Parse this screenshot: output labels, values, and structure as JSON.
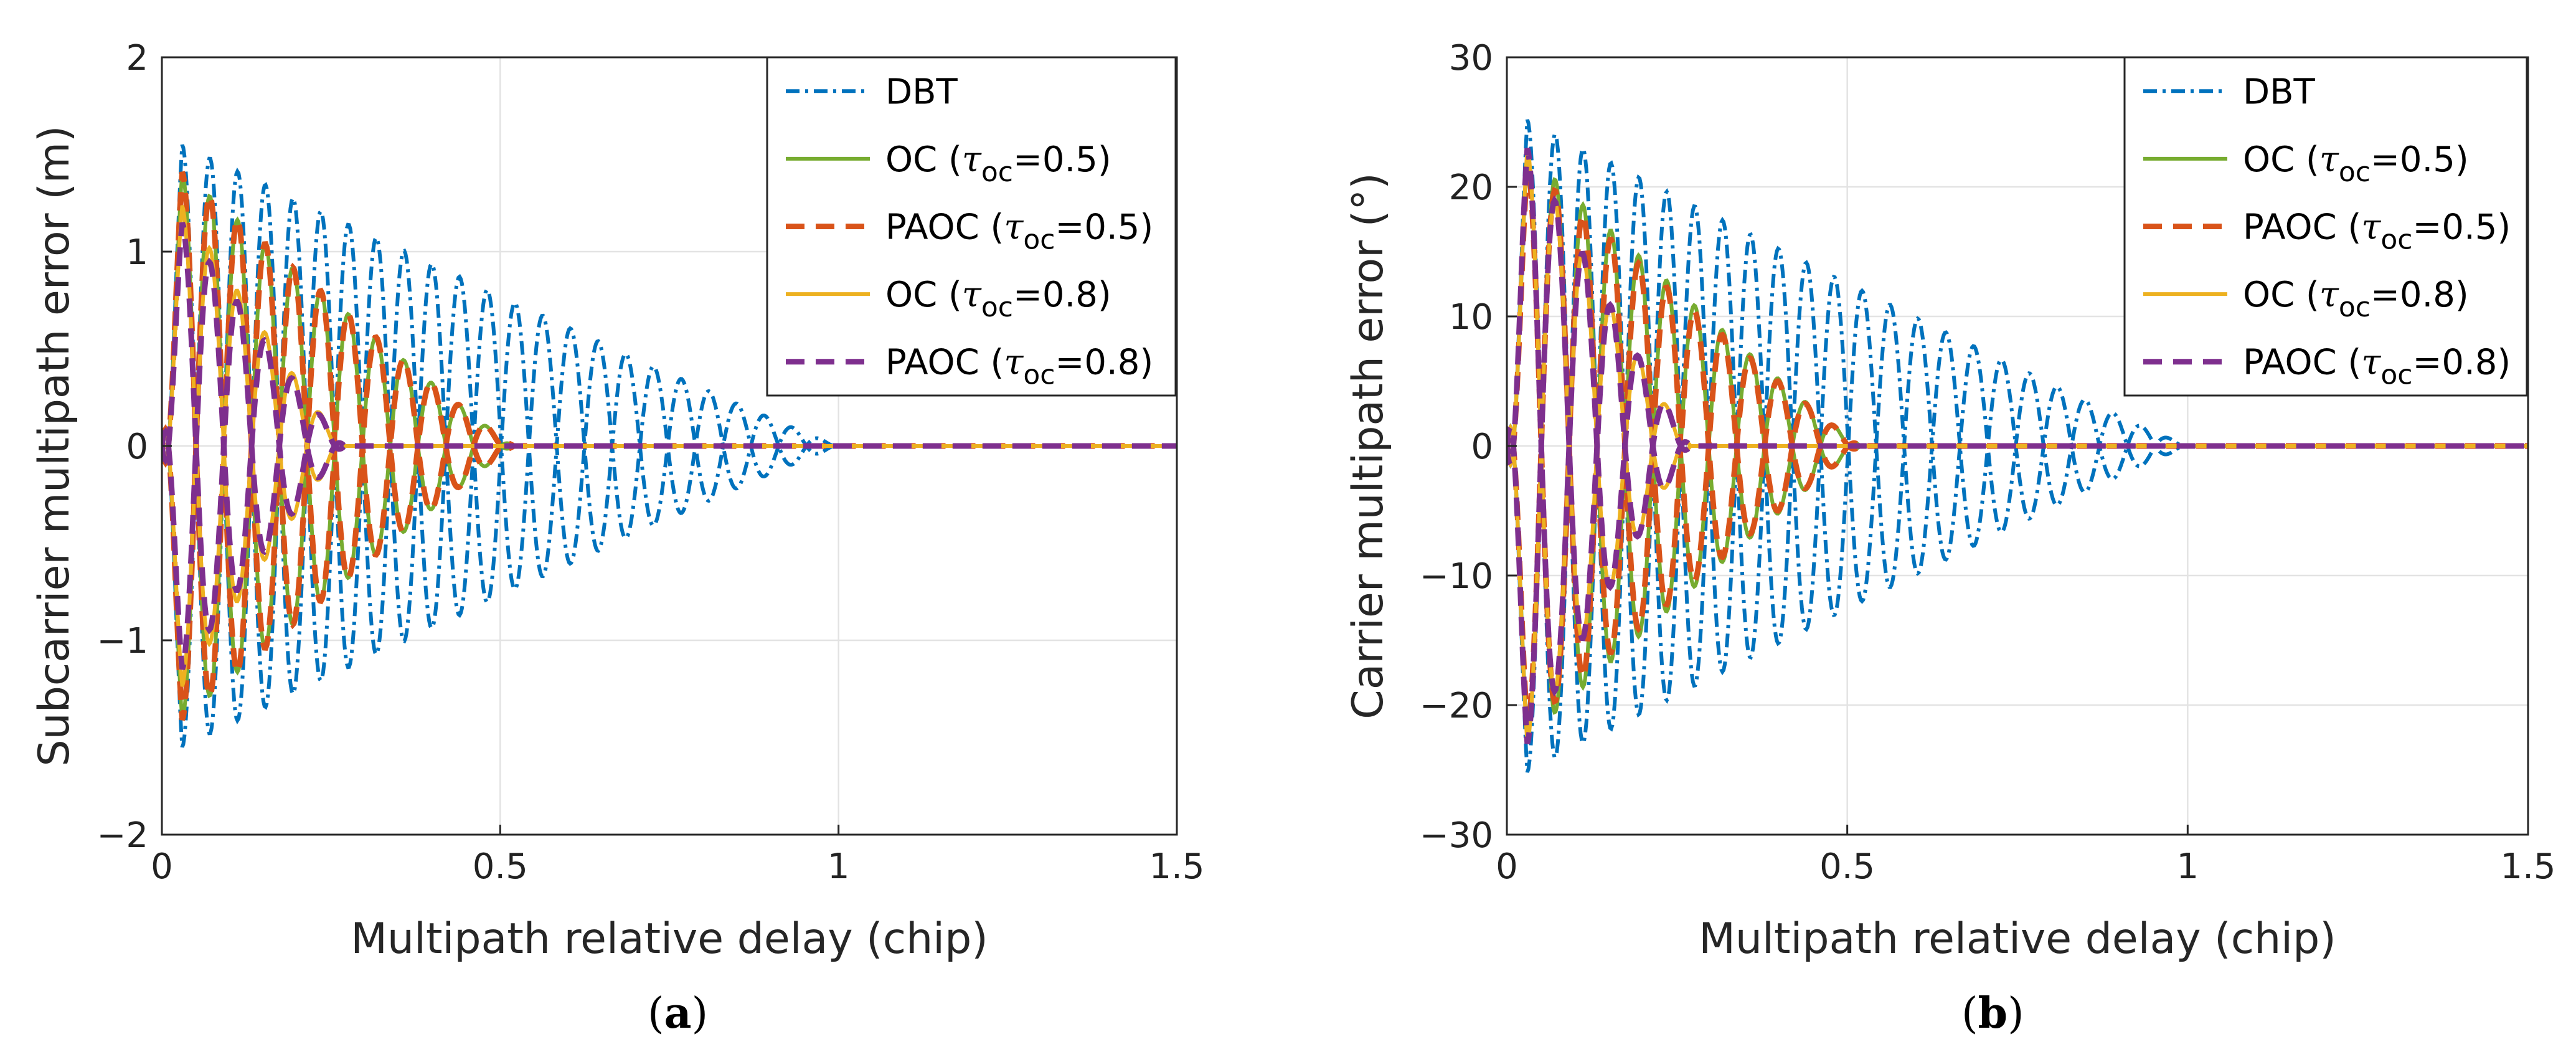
{
  "chart_data": [
    {
      "type": "line",
      "panel": "(a)",
      "panel_prefix": "(",
      "panel_letter": "a",
      "panel_suffix": ")",
      "xlabel": "Multipath relative delay (chip)",
      "ylabel": "Subcarrier multipath error (m)",
      "xlim": [
        0,
        1.5
      ],
      "ylim": [
        -2,
        2
      ],
      "xticks": [
        0,
        0.5,
        1,
        1.5
      ],
      "yticks": [
        -2,
        -1,
        0,
        1,
        2
      ],
      "xtick_labels": [
        "0",
        "0.5",
        "1",
        "1.5"
      ],
      "ytick_labels": [
        "−2",
        "−1",
        "0",
        "1",
        "2"
      ],
      "grid": true,
      "legend_position": "top-right",
      "envelope": "upper and lower curves are mirror images (in-phase / anti-phase multipath)",
      "series": [
        {
          "name": "DBT",
          "label_main": "DBT",
          "label_sub": "",
          "label_tail": "",
          "style": "dash-dot",
          "color": "#0072BD",
          "peak": 1.6,
          "cycle": 0.082,
          "zero_at": 1.0
        },
        {
          "name": "OC (τoc=0.5)",
          "label_main": "OC (",
          "label_sub": "oc",
          "label_tail": "=0.5)",
          "style": "solid",
          "color": "#77AC30",
          "peak": 1.5,
          "cycle": 0.082,
          "zero_at": 0.52
        },
        {
          "name": "PAOC (τoc=0.5)",
          "label_main": "PAOC (",
          "label_sub": "oc",
          "label_tail": "=0.5)",
          "style": "dashed",
          "color": "#D95319",
          "peak": 1.5,
          "cycle": 0.082,
          "zero_at": 0.52
        },
        {
          "name": "OC (τoc=0.8)",
          "label_main": "OC (",
          "label_sub": "oc",
          "label_tail": "=0.8)",
          "style": "solid",
          "color": "#EDB120",
          "peak": 1.4,
          "cycle": 0.082,
          "zero_at": 0.27
        },
        {
          "name": "PAOC (τoc=0.8)",
          "label_main": "PAOC (",
          "label_sub": "oc",
          "label_tail": "=0.8)",
          "style": "dashed",
          "color": "#7E2F8E",
          "peak": 1.3,
          "cycle": 0.082,
          "zero_at": 0.27
        }
      ]
    },
    {
      "type": "line",
      "panel": "(b)",
      "panel_prefix": "(",
      "panel_letter": "b",
      "panel_suffix": ")",
      "xlabel": "Multipath relative delay (chip)",
      "ylabel": "Carrier multipath error (°)",
      "xlim": [
        0,
        1.5
      ],
      "ylim": [
        -30,
        30
      ],
      "xticks": [
        0,
        0.5,
        1,
        1.5
      ],
      "yticks": [
        -30,
        -20,
        -10,
        0,
        10,
        20,
        30
      ],
      "xtick_labels": [
        "0",
        "0.5",
        "1",
        "1.5"
      ],
      "ytick_labels": [
        "−30",
        "−20",
        "−10",
        "0",
        "10",
        "20",
        "30"
      ],
      "grid": true,
      "legend_position": "top-right",
      "envelope": "upper and lower curves are mirror images (in-phase / anti-phase multipath)",
      "series": [
        {
          "name": "DBT",
          "label_main": "DBT",
          "label_sub": "",
          "label_tail": "",
          "style": "dash-dot",
          "color": "#0072BD",
          "peak": 26,
          "cycle": 0.082,
          "zero_at": 1.0
        },
        {
          "name": "OC (τoc=0.5)",
          "label_main": "OC (",
          "label_sub": "oc",
          "label_tail": "=0.5)",
          "style": "solid",
          "color": "#77AC30",
          "peak": 24,
          "cycle": 0.082,
          "zero_at": 0.52
        },
        {
          "name": "PAOC (τoc=0.5)",
          "label_main": "PAOC (",
          "label_sub": "oc",
          "label_tail": "=0.5)",
          "style": "dashed",
          "color": "#D95319",
          "peak": 23,
          "cycle": 0.082,
          "zero_at": 0.52
        },
        {
          "name": "OC (τoc=0.8)",
          "label_main": "OC (",
          "label_sub": "oc",
          "label_tail": "=0.8)",
          "style": "solid",
          "color": "#EDB120",
          "peak": 26,
          "cycle": 0.082,
          "zero_at": 0.27
        },
        {
          "name": "PAOC (τoc=0.8)",
          "label_main": "PAOC (",
          "label_sub": "oc",
          "label_tail": "=0.8)",
          "style": "dashed",
          "color": "#7E2F8E",
          "peak": 26,
          "cycle": 0.082,
          "zero_at": 0.27
        }
      ]
    }
  ]
}
